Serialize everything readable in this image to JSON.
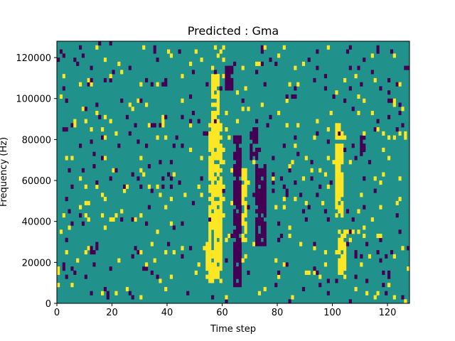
{
  "chart_data": {
    "type": "heatmap",
    "title": "Predicted : Gma",
    "xlabel": "Time step",
    "ylabel": "Frequency (Hz)",
    "xlim": [
      0,
      128
    ],
    "ylim": [
      0,
      128000
    ],
    "xticks": [
      0,
      20,
      40,
      60,
      80,
      100,
      120
    ],
    "yticks": [
      0,
      20000,
      40000,
      60000,
      80000,
      100000,
      120000
    ],
    "n_time_steps": 128,
    "n_freq_bins": 64,
    "colors": {
      "low": "#440154",
      "mid": "#21918c",
      "high": "#fde725"
    },
    "background_level": "mid",
    "regions": [
      {
        "level": "high",
        "t0": 55,
        "t1": 60,
        "f0": 10000,
        "f1": 88000
      },
      {
        "level": "high",
        "t0": 56,
        "t1": 59,
        "f0": 88000,
        "f1": 112000
      },
      {
        "level": "high",
        "t0": 54,
        "t1": 56,
        "f0": 12000,
        "f1": 30000
      },
      {
        "level": "low",
        "t0": 64,
        "t1": 67,
        "f0": 8000,
        "f1": 82000
      },
      {
        "level": "low",
        "t0": 61,
        "t1": 64,
        "f0": 104000,
        "f1": 116000
      },
      {
        "level": "high",
        "t0": 67,
        "t1": 69,
        "f0": 30000,
        "f1": 66000
      },
      {
        "level": "low",
        "t0": 72,
        "t1": 76,
        "f0": 28000,
        "f1": 68000
      },
      {
        "level": "low",
        "t0": 70,
        "t1": 73,
        "f0": 70000,
        "f1": 86000
      },
      {
        "level": "high",
        "t0": 101,
        "t1": 104,
        "f0": 42000,
        "f1": 88000
      },
      {
        "level": "high",
        "t0": 102,
        "t1": 105,
        "f0": 14000,
        "f1": 36000
      },
      {
        "level": "low",
        "t0": 110,
        "t1": 112,
        "f0": 74000,
        "f1": 82000
      }
    ],
    "seed": 7
  }
}
